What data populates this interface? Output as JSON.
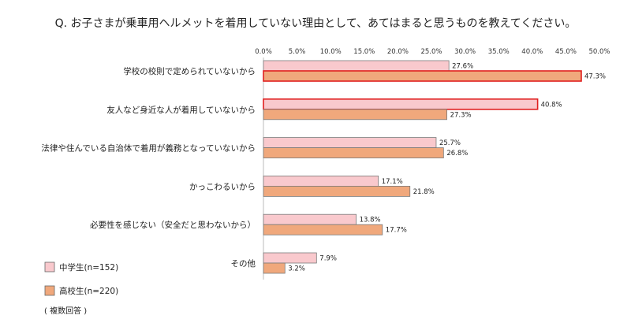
{
  "chart_data": {
    "type": "bar",
    "orientation": "horizontal",
    "title": "Q. お子さまが乗車用ヘルメットを着用していない理由として、あてはまると思うものを教えてください。",
    "categories": [
      "学校の校則で定められていないから",
      "友人など身近な人が着用していないから",
      "法律や住んでいる自治体で着用が義務となっていないから",
      "かっこわるいから",
      "必要性を感じない（安全だと思わないから）",
      "その他"
    ],
    "series": [
      {
        "name": "中学生(n=152)",
        "values": [
          27.6,
          40.8,
          25.7,
          17.1,
          13.8,
          7.9
        ],
        "value_labels": [
          "27.6%",
          "40.8%",
          "25.7%",
          "17.1%",
          "13.8%",
          "7.9%"
        ],
        "color": "#f9c9cd"
      },
      {
        "name": "高校生(n=220)",
        "values": [
          47.3,
          27.3,
          26.8,
          21.8,
          17.7,
          3.2
        ],
        "value_labels": [
          "47.3%",
          "27.3%",
          "26.8%",
          "21.8%",
          "17.7%",
          "3.2%"
        ],
        "color": "#f0a87c"
      }
    ],
    "highlighted": [
      {
        "series": 1,
        "category": 0
      },
      {
        "series": 0,
        "category": 1
      }
    ],
    "highlight_color": "#e02020",
    "xlim": [
      0,
      50
    ],
    "ticks": [
      0,
      5,
      10,
      15,
      20,
      25,
      30,
      35,
      40,
      45,
      50
    ],
    "tick_labels": [
      "0.0%",
      "5.0%",
      "10.0%",
      "15.0%",
      "20.0%",
      "25.0%",
      "30.0%",
      "35.0%",
      "40.0%",
      "45.0%",
      "50.0%"
    ],
    "legend_position": "bottom-left",
    "grid": false,
    "note": "( 複数回答 )"
  }
}
